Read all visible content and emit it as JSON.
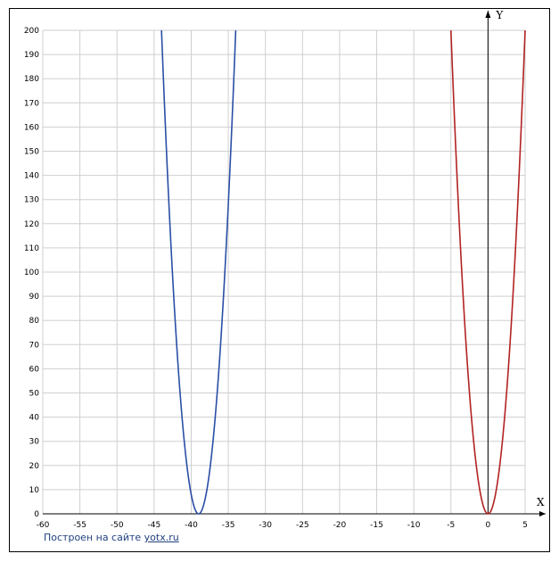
{
  "chart_data": {
    "type": "line",
    "xlim": [
      -60,
      5
    ],
    "ylim": [
      0,
      200
    ],
    "x_ticks": [
      -60,
      -55,
      -50,
      -45,
      -40,
      -35,
      -30,
      -25,
      -20,
      -15,
      -10,
      -5,
      0,
      5
    ],
    "y_ticks": [
      0,
      10,
      20,
      30,
      40,
      50,
      60,
      70,
      80,
      90,
      100,
      110,
      120,
      130,
      140,
      150,
      160,
      170,
      180,
      190,
      200
    ],
    "xlabel": "X",
    "ylabel": "Y",
    "grid": true,
    "series": [
      {
        "color": "#2a4ea6",
        "vertex": [
          -39,
          0
        ],
        "points": [
          [
            -44,
            200
          ],
          [
            -39,
            0
          ],
          [
            -34,
            200
          ]
        ]
      },
      {
        "color": "#b22222",
        "vertex": [
          0,
          0
        ],
        "points": [
          [
            -5,
            200
          ],
          [
            0,
            0
          ],
          [
            5,
            200
          ]
        ]
      }
    ]
  },
  "credit": {
    "prefix": "Построен на сайте",
    "link": "yotx.ru"
  }
}
